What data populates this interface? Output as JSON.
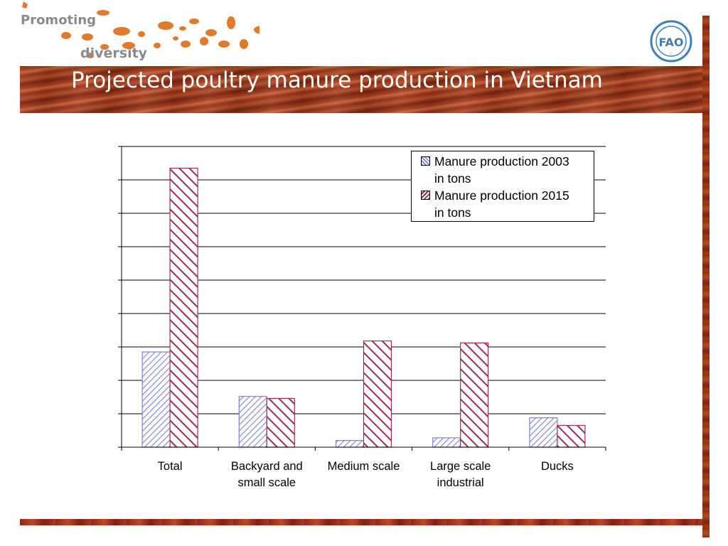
{
  "header": {
    "logo_line1": "Promoting",
    "logo_line2": "diversity",
    "fao_text": "FAO"
  },
  "title": "Projected poultry manure production in Vietnam",
  "chart_data": {
    "type": "bar",
    "title": "Projected poultry manure production in Vietnam",
    "categories": [
      "Total",
      "Backyard and small scale",
      "Medium scale",
      "Large scale industrial",
      "Ducks"
    ],
    "category_lines": [
      [
        "Total"
      ],
      [
        "Backyard and",
        "small scale"
      ],
      [
        "Medium scale"
      ],
      [
        "Large scale",
        "industrial"
      ],
      [
        "Ducks"
      ]
    ],
    "series": [
      {
        "name": "Manure production 2003 in tons",
        "legend_lines": [
          "Manure production 2003",
          "in tons"
        ],
        "values": [
          2.85,
          1.52,
          0.2,
          0.28,
          0.88
        ],
        "color": "#7f7fd8",
        "pattern": "diag-up"
      },
      {
        "name": "Manure production 2015 in tons",
        "legend_lines": [
          "Manure production 2015",
          "in tons"
        ],
        "values": [
          8.35,
          1.46,
          3.18,
          3.12,
          0.65
        ],
        "color": "#9b2d52",
        "pattern": "diag-down"
      }
    ],
    "ylim": [
      0,
      9
    ],
    "y_ticks": [
      0,
      1,
      2,
      3,
      4,
      5,
      6,
      7,
      8,
      9
    ],
    "y_tick_labels_visible": false,
    "xlabel": "",
    "ylabel": "",
    "grid": true,
    "legend_position": "top-right"
  }
}
